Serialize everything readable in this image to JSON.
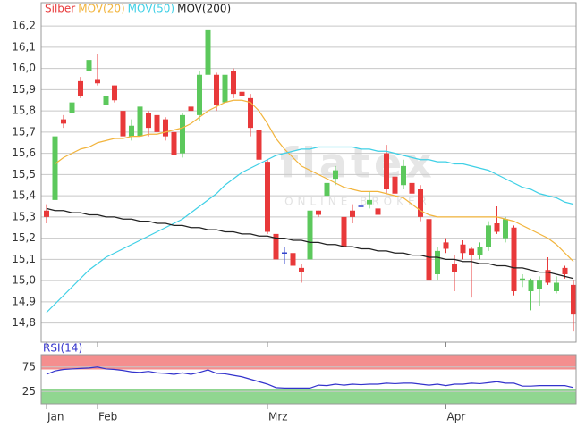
{
  "chart_data": [
    {
      "type": "candlestick",
      "watermark": "flatex",
      "watermark_sub": "ONLINE BROKER",
      "categories": [
        "Jan",
        null,
        null,
        null,
        null,
        null,
        "Feb",
        null,
        null,
        null,
        null,
        null,
        null,
        null,
        null,
        null,
        null,
        null,
        null,
        null,
        null,
        null,
        null,
        null,
        null,
        null,
        "Mrz",
        null,
        null,
        null,
        null,
        null,
        null,
        null,
        null,
        null,
        null,
        null,
        null,
        null,
        null,
        null,
        null,
        null,
        null,
        null,
        null,
        "Apr",
        null,
        null,
        null,
        null,
        null,
        null,
        null,
        null,
        null,
        null,
        null,
        null,
        null,
        null,
        null
      ],
      "candles": {
        "name": "Silber",
        "color": "#e8393a",
        "up_color": "#5cc85c",
        "down_color": "#e8393a",
        "doji_color": "#3344cc",
        "open": [
          15.33,
          15.38,
          15.76,
          15.79,
          15.94,
          15.99,
          15.95,
          15.83,
          15.92,
          15.8,
          15.68,
          15.68,
          15.79,
          15.78,
          15.76,
          15.7,
          15.6,
          15.82,
          15.78,
          15.97,
          15.97,
          15.84,
          15.99,
          15.89,
          15.86,
          15.71,
          15.56,
          15.22,
          15.13,
          15.13,
          15.06,
          15.1,
          15.33,
          15.4,
          15.48,
          15.3,
          15.33,
          15.35,
          15.36,
          15.34,
          15.6,
          15.49,
          15.45,
          15.46,
          15.43,
          15.29,
          15.03,
          15.18,
          15.08,
          15.17,
          15.15,
          15.12,
          15.16,
          15.27,
          15.2,
          15.25,
          15.0,
          14.95,
          14.96,
          15.05,
          14.95,
          15.06,
          14.98
        ],
        "high": [
          15.36,
          15.7,
          15.78,
          15.93,
          15.96,
          16.19,
          16.07,
          15.97,
          15.92,
          15.84,
          15.76,
          15.84,
          15.8,
          15.8,
          15.77,
          15.72,
          15.79,
          15.83,
          15.99,
          16.22,
          15.98,
          15.98,
          16.0,
          15.9,
          15.88,
          15.72,
          15.57,
          15.25,
          15.16,
          15.14,
          15.08,
          15.35,
          15.33,
          15.48,
          15.54,
          15.38,
          15.36,
          15.43,
          15.42,
          15.36,
          15.64,
          15.52,
          15.57,
          15.48,
          15.45,
          15.3,
          15.16,
          15.2,
          15.12,
          15.19,
          15.16,
          15.18,
          15.28,
          15.35,
          15.3,
          15.26,
          15.03,
          15.01,
          15.02,
          15.11,
          15.02,
          15.07,
          15.0
        ],
        "low": [
          15.27,
          15.36,
          15.72,
          15.77,
          15.86,
          15.95,
          15.92,
          15.69,
          15.84,
          15.67,
          15.66,
          15.66,
          15.68,
          15.68,
          15.66,
          15.5,
          15.58,
          15.79,
          15.75,
          15.95,
          15.8,
          15.82,
          15.86,
          15.85,
          15.68,
          15.55,
          15.22,
          15.08,
          15.08,
          15.06,
          14.99,
          15.08,
          15.3,
          15.37,
          15.45,
          15.14,
          15.27,
          15.32,
          15.34,
          15.28,
          15.41,
          15.39,
          15.43,
          15.4,
          15.28,
          14.98,
          15.0,
          15.13,
          14.95,
          15.1,
          14.92,
          15.1,
          15.14,
          15.22,
          15.18,
          14.93,
          14.97,
          14.86,
          14.88,
          14.98,
          14.94,
          15.01,
          14.76
        ],
        "close": [
          15.3,
          15.68,
          15.74,
          15.84,
          15.87,
          16.04,
          15.93,
          15.87,
          15.85,
          15.68,
          15.73,
          15.82,
          15.72,
          15.7,
          15.68,
          15.59,
          15.78,
          15.8,
          15.97,
          16.18,
          15.83,
          15.97,
          15.88,
          15.87,
          15.72,
          15.57,
          15.23,
          15.1,
          15.13,
          15.07,
          15.04,
          15.33,
          15.31,
          15.46,
          15.52,
          15.16,
          15.3,
          15.35,
          15.38,
          15.31,
          15.43,
          15.41,
          15.54,
          15.41,
          15.3,
          15.0,
          15.14,
          15.15,
          15.04,
          15.13,
          15.12,
          15.16,
          15.26,
          15.23,
          15.29,
          14.95,
          15.01,
          15.0,
          15.0,
          14.99,
          14.99,
          15.03,
          14.84
        ]
      },
      "lines": [
        {
          "name": "MOV(20)",
          "color": "#f2b43c",
          "values": [
            null,
            15.55,
            15.58,
            15.6,
            15.62,
            15.63,
            15.65,
            15.66,
            15.67,
            15.67,
            15.68,
            15.68,
            15.69,
            15.69,
            15.7,
            15.71,
            15.72,
            15.74,
            15.77,
            15.8,
            15.82,
            15.84,
            15.85,
            15.85,
            15.84,
            15.8,
            15.74,
            15.67,
            15.62,
            15.58,
            15.54,
            15.52,
            15.5,
            15.48,
            15.46,
            15.44,
            15.43,
            15.42,
            15.42,
            15.42,
            15.41,
            15.4,
            15.39,
            15.36,
            15.33,
            15.31,
            15.3,
            15.3,
            15.3,
            15.3,
            15.3,
            15.3,
            15.3,
            15.3,
            15.29,
            15.28,
            15.26,
            15.24,
            15.22,
            15.2,
            15.17,
            15.13,
            15.09
          ]
        },
        {
          "name": "MOV(50)",
          "color": "#3fd0e6",
          "values": [
            14.85,
            14.89,
            14.93,
            14.97,
            15.01,
            15.05,
            15.08,
            15.11,
            15.13,
            15.15,
            15.17,
            15.19,
            15.21,
            15.23,
            15.25,
            15.27,
            15.29,
            15.32,
            15.35,
            15.38,
            15.41,
            15.45,
            15.48,
            15.51,
            15.53,
            15.55,
            15.57,
            15.59,
            15.6,
            15.61,
            15.62,
            15.62,
            15.63,
            15.63,
            15.63,
            15.63,
            15.63,
            15.62,
            15.62,
            15.61,
            15.61,
            15.6,
            15.59,
            15.58,
            15.57,
            15.57,
            15.56,
            15.56,
            15.55,
            15.55,
            15.54,
            15.53,
            15.52,
            15.5,
            15.48,
            15.46,
            15.44,
            15.43,
            15.41,
            15.4,
            15.39,
            15.37,
            15.36
          ]
        },
        {
          "name": "MOV(200)",
          "color": "#222222",
          "values": [
            15.34,
            15.33,
            15.33,
            15.32,
            15.32,
            15.31,
            15.31,
            15.3,
            15.3,
            15.29,
            15.29,
            15.28,
            15.28,
            15.27,
            15.27,
            15.26,
            15.26,
            15.25,
            15.25,
            15.24,
            15.24,
            15.23,
            15.23,
            15.22,
            15.22,
            15.21,
            15.21,
            15.2,
            15.2,
            15.19,
            15.19,
            15.18,
            15.18,
            15.17,
            15.17,
            15.16,
            15.16,
            15.15,
            15.15,
            15.14,
            15.14,
            15.13,
            15.13,
            15.12,
            15.12,
            15.11,
            15.11,
            15.1,
            15.1,
            15.09,
            15.09,
            15.08,
            15.08,
            15.07,
            15.07,
            15.06,
            15.06,
            15.05,
            15.04,
            15.04,
            15.03,
            15.02,
            15.01
          ]
        }
      ],
      "ylim": [
        14.71,
        16.31
      ],
      "yticks": [
        {
          "value": 14.8,
          "label": "14,8"
        },
        {
          "value": 14.9,
          "label": "14,9"
        },
        {
          "value": 15.0,
          "label": "15,0"
        },
        {
          "value": 15.1,
          "label": "15,1"
        },
        {
          "value": 15.2,
          "label": "15,2"
        },
        {
          "value": 15.3,
          "label": "15,3"
        },
        {
          "value": 15.4,
          "label": "15,4"
        },
        {
          "value": 15.5,
          "label": "15,5"
        },
        {
          "value": 15.6,
          "label": "15,6"
        },
        {
          "value": 15.7,
          "label": "15,7"
        },
        {
          "value": 15.8,
          "label": "15,8"
        },
        {
          "value": 15.9,
          "label": "15,9"
        },
        {
          "value": 16.0,
          "label": "16,0"
        },
        {
          "value": 16.1,
          "label": "16,1"
        },
        {
          "value": 16.2,
          "label": "16,2"
        }
      ],
      "grid": true
    },
    {
      "type": "line",
      "title": "RSI(14)",
      "series": [
        {
          "color": "#3333cc",
          "values": [
            60,
            67,
            70,
            71,
            72,
            73,
            75,
            71,
            70,
            68,
            65,
            64,
            66,
            63,
            62,
            60,
            63,
            60,
            64,
            69,
            62,
            61,
            58,
            55,
            50,
            45,
            40,
            33,
            32,
            32,
            32,
            32,
            38,
            37,
            40,
            38,
            40,
            39,
            40,
            40,
            42,
            41,
            42,
            42,
            40,
            38,
            40,
            37,
            40,
            40,
            42,
            41,
            43,
            45,
            42,
            42,
            36,
            36,
            37,
            37,
            37,
            37,
            33
          ]
        }
      ],
      "bands": [
        {
          "from": 70,
          "to": 100,
          "color": "#f27a7a"
        },
        {
          "from": 0,
          "to": 30,
          "color": "#7ccf7c"
        }
      ],
      "ylim": [
        0,
        100
      ],
      "yticks": [
        25,
        75
      ],
      "grid": true
    }
  ]
}
